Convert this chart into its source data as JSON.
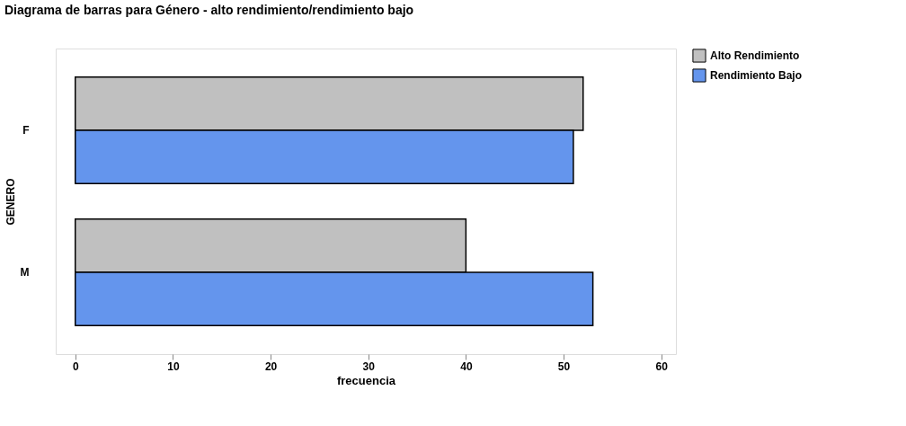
{
  "chart_data": {
    "type": "bar",
    "orientation": "horizontal",
    "title": "Diagrama de barras para Género - alto rendimiento/rendimiento bajo",
    "xlabel": "frecuencia",
    "ylabel": "GENERO",
    "categories": [
      "F",
      "M"
    ],
    "series": [
      {
        "name": "Alto Rendimiento",
        "color": "#c0c0c0",
        "values": [
          52,
          40
        ]
      },
      {
        "name": "Rendimiento Bajo",
        "color": "#6495ed",
        "values": [
          51,
          53
        ]
      }
    ],
    "xlim": [
      -2,
      61.5
    ],
    "xticks": [
      0,
      10,
      20,
      30,
      40,
      50,
      60
    ],
    "grid": false,
    "legend": "top right"
  }
}
